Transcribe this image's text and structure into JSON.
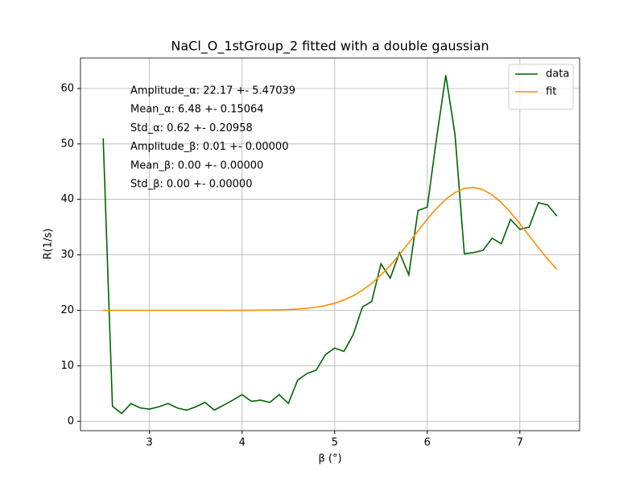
{
  "chart_data": {
    "type": "line",
    "title": "NaCl_O_1stGroup_2 fitted with a double gaussian",
    "x_label": "β (°)",
    "y_label": "R(1/s)",
    "x": [
      2.5,
      2.6,
      2.7,
      2.8,
      2.9,
      3.0,
      3.1,
      3.2,
      3.3,
      3.4,
      3.5,
      3.6,
      3.7,
      3.8,
      3.9,
      4.0,
      4.1,
      4.2,
      4.3,
      4.4,
      4.5,
      4.6,
      4.7,
      4.8,
      4.9,
      5.0,
      5.1,
      5.2,
      5.3,
      5.4,
      5.5,
      5.6,
      5.7,
      5.8,
      5.9,
      6.0,
      6.1,
      6.2,
      6.3,
      6.4,
      6.5,
      6.6,
      6.7,
      6.8,
      6.9,
      7.0,
      7.1,
      7.2,
      7.3,
      7.4
    ],
    "series": [
      {
        "name": "data",
        "color": "#006400",
        "values": [
          51,
          2.7,
          1.4,
          3.2,
          2.4,
          2.2,
          2.6,
          3.2,
          2.4,
          2.0,
          2.6,
          3.4,
          2.0,
          2.9,
          3.8,
          4.8,
          3.6,
          3.8,
          3.4,
          4.8,
          3.2,
          7.4,
          8.6,
          9.2,
          12.0,
          13.2,
          12.6,
          15.6,
          20.6,
          21.6,
          28.4,
          25.8,
          30.4,
          26.4,
          38.0,
          38.6,
          51.0,
          62.4,
          51.6,
          30.2,
          30.4,
          30.8,
          33.0,
          32.0,
          36.4,
          34.6,
          35.0,
          39.4,
          39.0,
          37.0
        ]
      },
      {
        "name": "fit",
        "color": "#ff8c00",
        "values": [
          20,
          20,
          20,
          20,
          20,
          20,
          20,
          20,
          20,
          20,
          20,
          20,
          20,
          20,
          20,
          20.01,
          20.01,
          20.03,
          20.05,
          20.08,
          20.14,
          20.22,
          20.36,
          20.56,
          20.86,
          21.28,
          21.86,
          22.63,
          23.62,
          24.86,
          26.36,
          28.1,
          30.05,
          32.15,
          34.31,
          36.43,
          38.37,
          40.02,
          41.25,
          41.99,
          42.16,
          41.76,
          40.82,
          39.41,
          37.63,
          35.6,
          33.45,
          31.3,
          29.25,
          27.37
        ]
      }
    ],
    "annotations": [
      "Amplitude_α: 22.17 +- 5.47039",
      "Mean_α: 6.48 +- 0.15064",
      "Std_α: 0.62 +- 0.20958",
      "Amplitude_β: 0.01 +- 0.00000",
      "Mean_β: 0.00 +- 0.00000",
      "Std_β: 0.00 +- 0.00000"
    ],
    "xlim": [
      2.255,
      7.645
    ],
    "ylim": [
      -1.7,
      65.5
    ],
    "xticks": [
      3,
      4,
      5,
      6,
      7
    ],
    "yticks": [
      0,
      10,
      20,
      30,
      40,
      50,
      60
    ],
    "grid": true,
    "legend": "upper right"
  }
}
